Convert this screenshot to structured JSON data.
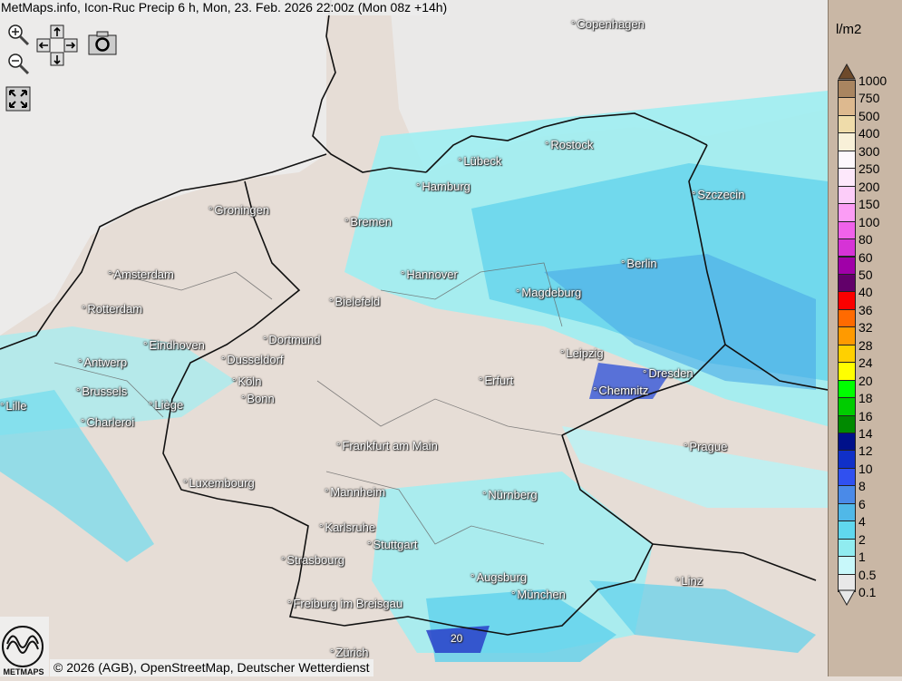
{
  "title": "MetMaps.info, Icon-Ruc Precip 6 h, Mon, 23. Feb. 2026 22:00z (Mon 08z +14h)",
  "controls": {
    "zoom_in": "zoom-in-icon",
    "zoom_out": "zoom-out-icon",
    "pan": "pan-arrows-icon",
    "screenshot": "camera-icon",
    "fullscreen": "fullscreen-icon"
  },
  "cities": [
    "Copenhagen",
    "Rostock",
    "Lübeck",
    "Hamburg",
    "Szczecin",
    "Groningen",
    "Bremen",
    "Amsterdam",
    "Hannover",
    "Berlin",
    "Bielefeld",
    "Magdeburg",
    "Rotterdam",
    "Dortmund",
    "Eindhoven",
    "Leipzig",
    "Antwerp",
    "Dusseldorf",
    "Dresden",
    "Erfurt",
    "Köln",
    "Brussels",
    "Chemnitz",
    "Bonn",
    "Liège",
    "Lille",
    "Charleroi",
    "Frankfurt am Main",
    "Prague",
    "Luxembourg",
    "Mannheim",
    "Nürnberg",
    "Karlsruhe",
    "Stuttgart",
    "Strasbourg",
    "Augsburg",
    "Linz",
    "München",
    "Freiburg im Breisgau",
    "Zürich"
  ],
  "value_label": "20",
  "legend": {
    "unit": "l/m2",
    "labels": [
      "1000",
      "750",
      "500",
      "400",
      "300",
      "250",
      "200",
      "150",
      "100",
      "80",
      "60",
      "50",
      "40",
      "36",
      "32",
      "28",
      "24",
      "20",
      "18",
      "16",
      "14",
      "12",
      "10",
      "8",
      "6",
      "4",
      "2",
      "1",
      "0.5",
      "0.1"
    ],
    "colors": [
      "#6e4a2a",
      "#a98560",
      "#ddb98f",
      "#efdcaa",
      "#f8f0d8",
      "#fdf8fc",
      "#fde8fb",
      "#fccdf9",
      "#fb9cf5",
      "#f062ea",
      "#d633d6",
      "#a000a8",
      "#62006a",
      "#fb0000",
      "#ff6a00",
      "#ff9a00",
      "#ffd000",
      "#ffff00",
      "#00ff00",
      "#00cc00",
      "#008a00",
      "#00108a",
      "#1030c8",
      "#3050f0",
      "#4a8ae8",
      "#50b8e8",
      "#60d8ee",
      "#90ecf0",
      "#c8f8fa",
      "#e8e8e8"
    ]
  },
  "credit": "© 2026 (AGB), OpenStreetMap, Deutscher Wetterdienst",
  "logo_text": "METMAPS"
}
